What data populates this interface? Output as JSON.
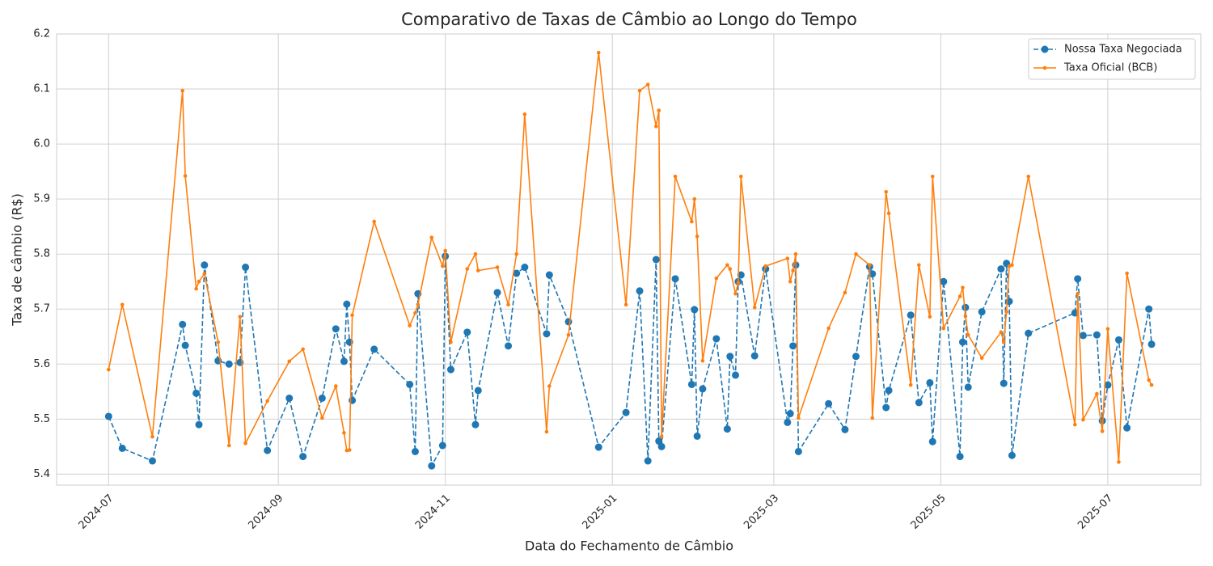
{
  "chart_data": {
    "type": "line",
    "title": "Comparativo de Taxas de Câmbio ao Longo do Tempo",
    "x_label": "Data do Fechamento de Câmbio",
    "y_label": "Taxa de câmbio (R$)",
    "x": [
      "2024-07-01",
      "2024-07-06",
      "2024-07-17",
      "2024-07-28",
      "2024-07-29",
      "2024-08-02",
      "2024-08-03",
      "2024-08-05",
      "2024-08-10",
      "2024-08-14",
      "2024-08-18",
      "2024-08-20",
      "2024-08-28",
      "2024-09-05",
      "2024-09-10",
      "2024-09-17",
      "2024-09-22",
      "2024-09-25",
      "2024-09-26",
      "2024-09-27",
      "2024-09-28",
      "2024-10-06",
      "2024-10-19",
      "2024-10-21",
      "2024-10-22",
      "2024-10-27",
      "2024-10-31",
      "2024-11-01",
      "2024-11-03",
      "2024-11-09",
      "2024-11-12",
      "2024-11-13",
      "2024-11-20",
      "2024-11-24",
      "2024-11-27",
      "2024-11-30",
      "2024-12-08",
      "2024-12-09",
      "2024-12-16",
      "2024-12-27",
      "2025-01-06",
      "2025-01-11",
      "2025-01-14",
      "2025-01-17",
      "2025-01-18",
      "2025-01-19",
      "2025-01-24",
      "2025-01-30",
      "2025-01-31",
      "2025-02-01",
      "2025-02-03",
      "2025-02-08",
      "2025-02-12",
      "2025-02-13",
      "2025-02-15",
      "2025-02-16",
      "2025-02-17",
      "2025-02-22",
      "2025-02-26",
      "2025-03-06",
      "2025-03-07",
      "2025-03-08",
      "2025-03-09",
      "2025-03-10",
      "2025-03-21",
      "2025-03-27",
      "2025-03-31",
      "2025-04-05",
      "2025-04-06",
      "2025-04-11",
      "2025-04-12",
      "2025-04-20",
      "2025-04-23",
      "2025-04-27",
      "2025-04-28",
      "2025-05-02",
      "2025-05-08",
      "2025-05-09",
      "2025-05-10",
      "2025-05-11",
      "2025-05-16",
      "2025-05-23",
      "2025-05-24",
      "2025-05-25",
      "2025-05-26",
      "2025-05-27",
      "2025-06-02",
      "2025-06-19",
      "2025-06-20",
      "2025-06-22",
      "2025-06-27",
      "2025-06-29",
      "2025-07-01",
      "2025-07-05",
      "2025-07-08",
      "2025-07-16",
      "2025-07-17"
    ],
    "series": [
      {
        "name": "Nossa Taxa Negociada",
        "color": "#1f77b4",
        "linestyle": "dashed",
        "marker": "circle",
        "values": [
          5.505,
          5.447,
          5.424,
          5.672,
          5.634,
          5.547,
          5.49,
          5.78,
          5.606,
          5.6,
          5.603,
          5.776,
          5.443,
          5.538,
          5.432,
          5.538,
          5.664,
          5.605,
          5.709,
          5.64,
          5.534,
          5.627,
          5.563,
          5.441,
          5.728,
          5.415,
          5.452,
          5.796,
          5.59,
          5.658,
          5.49,
          5.552,
          5.73,
          5.633,
          5.765,
          5.776,
          5.655,
          5.762,
          5.677,
          5.449,
          5.512,
          5.733,
          5.424,
          5.79,
          5.46,
          5.45,
          5.755,
          5.563,
          5.699,
          5.469,
          5.555,
          5.646,
          5.482,
          5.614,
          5.58,
          5.75,
          5.762,
          5.615,
          5.773,
          5.494,
          5.51,
          5.633,
          5.78,
          5.441,
          5.528,
          5.481,
          5.614,
          5.777,
          5.764,
          5.521,
          5.552,
          5.689,
          5.53,
          5.566,
          5.459,
          5.75,
          5.432,
          5.64,
          5.703,
          5.558,
          5.695,
          5.773,
          5.565,
          5.783,
          5.714,
          5.434,
          5.656,
          5.693,
          5.755,
          5.652,
          5.653,
          5.497,
          5.562,
          5.644,
          5.484,
          5.7,
          5.636
        ]
      },
      {
        "name": "Taxa Oficial (BCB)",
        "color": "#ff7f0e",
        "linestyle": "solid",
        "marker": "dot",
        "values": [
          5.59,
          5.708,
          5.468,
          6.097,
          5.942,
          5.737,
          5.75,
          5.764,
          5.64,
          5.452,
          5.686,
          5.456,
          5.533,
          5.605,
          5.627,
          5.502,
          5.56,
          5.475,
          5.443,
          5.444,
          5.689,
          5.859,
          5.67,
          5.693,
          5.708,
          5.83,
          5.778,
          5.806,
          5.64,
          5.773,
          5.8,
          5.77,
          5.776,
          5.708,
          5.8,
          6.054,
          5.477,
          5.56,
          5.653,
          6.166,
          5.708,
          6.097,
          6.108,
          6.032,
          6.061,
          5.468,
          5.941,
          5.859,
          5.9,
          5.832,
          5.606,
          5.756,
          5.78,
          5.773,
          5.728,
          5.748,
          5.941,
          5.703,
          5.778,
          5.792,
          5.75,
          5.77,
          5.8,
          5.502,
          5.665,
          5.73,
          5.8,
          5.78,
          5.502,
          5.913,
          5.874,
          5.562,
          5.78,
          5.686,
          5.941,
          5.665,
          5.723,
          5.739,
          5.687,
          5.653,
          5.611,
          5.658,
          5.64,
          5.695,
          5.778,
          5.78,
          5.941,
          5.49,
          5.728,
          5.499,
          5.546,
          5.478,
          5.664,
          5.422,
          5.765,
          5.571,
          5.562
        ]
      }
    ],
    "xlim": [
      "2024-06-12",
      "2025-08-04"
    ],
    "xticks": [
      "2024-07",
      "2024-09",
      "2024-11",
      "2025-01",
      "2025-03",
      "2025-05",
      "2025-07"
    ],
    "ylim": [
      5.38,
      6.2
    ],
    "yticks": [
      5.4,
      5.5,
      5.6,
      5.7,
      5.8,
      5.9,
      {
        "value": 6,
        "label": "6.0"
      },
      6.1,
      6.2
    ],
    "grid": true,
    "legend": "upper right"
  }
}
